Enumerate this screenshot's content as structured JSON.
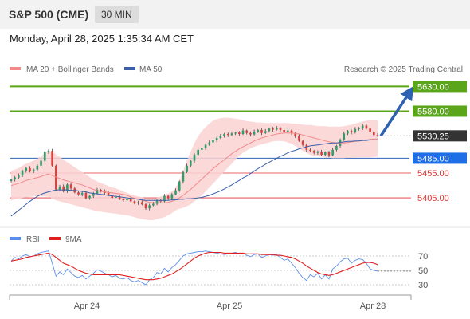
{
  "header": {
    "title": "S&P 500 (CME)",
    "timeframe": "30 MIN",
    "datetime": "Monday, April 28, 2025 1:35:34 AM CET",
    "source": "Research © 2025 Trading Central"
  },
  "colors": {
    "resistance": "#5aa51a",
    "support_line": "#2f63b8",
    "support_label": "#1e6fe6",
    "red_level": "#e03030",
    "price_box": "#333333",
    "bullish": "#2e9d6b",
    "bearish": "#d9403a",
    "ma20": "#f28a8a",
    "ma50": "#3a5fa8",
    "bollinger_fill": "#fbd2d2",
    "arrow": "#2e62b0",
    "rsi": "#5b8ee8",
    "rsi_ma": "#e02020"
  },
  "chart_data": [
    {
      "type": "line",
      "title": "",
      "legend": [
        {
          "label": "MA 20 + Bollinger Bands",
          "color": "#f28a8a"
        },
        {
          "label": "MA 50",
          "color": "#3a5fa8"
        }
      ],
      "legend_placement": "top-left",
      "x_ticks": [
        "Apr 24",
        "Apr 25",
        "Apr 28"
      ],
      "ylim": [
        5360,
        5650
      ],
      "levels": [
        {
          "value": 5630,
          "label": "5630.00",
          "kind": "resistance"
        },
        {
          "value": 5580,
          "label": "5580.00",
          "kind": "resistance"
        },
        {
          "value": 5530.25,
          "label": "5530.25",
          "kind": "last"
        },
        {
          "value": 5485,
          "label": "5485.00",
          "kind": "support"
        },
        {
          "value": 5455,
          "label": "5455.00",
          "kind": "red"
        },
        {
          "value": 5405,
          "label": "5405.00",
          "kind": "red"
        }
      ],
      "arrow": {
        "from": [
          98,
          5530
        ],
        "to": [
          106,
          5628
        ]
      },
      "close": [
        5442,
        5446,
        5450,
        5460,
        5465,
        5458,
        5462,
        5470,
        5480,
        5498,
        5500,
        5470,
        5422,
        5428,
        5418,
        5432,
        5424,
        5416,
        5412,
        5415,
        5404,
        5409,
        5414,
        5421,
        5419,
        5415,
        5410,
        5405,
        5407,
        5402,
        5400,
        5402,
        5398,
        5395,
        5396,
        5392,
        5384,
        5390,
        5393,
        5400,
        5398,
        5409,
        5404,
        5412,
        5420,
        5438,
        5457,
        5470,
        5480,
        5492,
        5502,
        5506,
        5512,
        5517,
        5521,
        5526,
        5530,
        5534,
        5532,
        5535,
        5537,
        5534,
        5541,
        5536,
        5533,
        5539,
        5542,
        5536,
        5540,
        5545,
        5543,
        5546,
        5542,
        5538,
        5541,
        5535,
        5530,
        5520,
        5512,
        5502,
        5500,
        5496,
        5498,
        5492,
        5497,
        5491,
        5502,
        5510,
        5522,
        5535,
        5540,
        5537,
        5544,
        5546,
        5551,
        5545,
        5538,
        5532,
        5530
      ],
      "ma20": [
        5430,
        5432,
        5434,
        5437,
        5440,
        5442,
        5444,
        5446,
        5448,
        5451,
        5453,
        5450,
        5447,
        5444,
        5441,
        5439,
        5437,
        5435,
        5433,
        5431,
        5428,
        5425,
        5422,
        5419,
        5418,
        5417,
        5416,
        5415,
        5414,
        5413,
        5412,
        5410,
        5407,
        5404,
        5402,
        5400,
        5398,
        5396,
        5395,
        5395,
        5395,
        5395,
        5396,
        5398,
        5401,
        5405,
        5410,
        5416,
        5422,
        5429,
        5436,
        5443,
        5450,
        5457,
        5464,
        5470,
        5476,
        5482,
        5488,
        5494,
        5499,
        5504,
        5508,
        5512,
        5516,
        5520,
        5523,
        5526,
        5528,
        5530,
        5532,
        5534,
        5535,
        5536,
        5536,
        5536,
        5535,
        5534,
        5532,
        5530,
        5528,
        5526,
        5524,
        5522,
        5520,
        5518,
        5517,
        5516,
        5516,
        5516,
        5517,
        5518,
        5519,
        5520,
        5521,
        5522,
        5523,
        5524,
        5524
      ],
      "bb_upper": [
        5460,
        5462,
        5465,
        5470,
        5474,
        5477,
        5480,
        5484,
        5489,
        5496,
        5500,
        5497,
        5493,
        5488,
        5482,
        5477,
        5472,
        5467,
        5462,
        5457,
        5452,
        5447,
        5442,
        5438,
        5435,
        5432,
        5429,
        5426,
        5424,
        5421,
        5418,
        5415,
        5412,
        5410,
        5408,
        5406,
        5404,
        5403,
        5403,
        5405,
        5408,
        5411,
        5414,
        5418,
        5425,
        5440,
        5460,
        5480,
        5498,
        5515,
        5530,
        5540,
        5548,
        5555,
        5561,
        5564,
        5566,
        5567,
        5567,
        5566,
        5565,
        5564,
        5562,
        5560,
        5559,
        5558,
        5557,
        5557,
        5556,
        5556,
        5556,
        5556,
        5556,
        5556,
        5556,
        5555,
        5555,
        5554,
        5553,
        5552,
        5552,
        5551,
        5550,
        5550,
        5550,
        5549,
        5549,
        5549,
        5549,
        5550,
        5551,
        5553,
        5555,
        5557,
        5559,
        5561,
        5562,
        5562,
        5562
      ],
      "bb_lower": [
        5400,
        5402,
        5404,
        5405,
        5406,
        5407,
        5408,
        5408,
        5408,
        5408,
        5407,
        5404,
        5400,
        5398,
        5396,
        5394,
        5392,
        5390,
        5388,
        5386,
        5384,
        5382,
        5380,
        5378,
        5377,
        5376,
        5375,
        5374,
        5373,
        5372,
        5371,
        5370,
        5368,
        5366,
        5364,
        5362,
        5361,
        5360,
        5360,
        5362,
        5364,
        5366,
        5370,
        5374,
        5380,
        5383,
        5385,
        5388,
        5392,
        5398,
        5404,
        5410,
        5418,
        5426,
        5434,
        5442,
        5450,
        5458,
        5466,
        5474,
        5482,
        5490,
        5496,
        5501,
        5505,
        5508,
        5511,
        5513,
        5515,
        5517,
        5519,
        5520,
        5520,
        5519,
        5517,
        5514,
        5510,
        5505,
        5500,
        5496,
        5492,
        5490,
        5489,
        5488,
        5487,
        5486,
        5485,
        5485,
        5485,
        5485,
        5486,
        5486,
        5486,
        5487,
        5487,
        5487,
        5487,
        5488,
        5488
      ],
      "ma50": [
        5368,
        5374,
        5380,
        5386,
        5392,
        5398,
        5403,
        5408,
        5412,
        5415,
        5417,
        5419,
        5421,
        5421,
        5421,
        5421,
        5420,
        5420,
        5419,
        5418,
        5417,
        5415,
        5414,
        5413,
        5412,
        5411,
        5410,
        5409,
        5408,
        5407,
        5406,
        5405,
        5404,
        5403,
        5402,
        5401,
        5400,
        5400,
        5400,
        5400,
        5400,
        5400,
        5400,
        5401,
        5401,
        5402,
        5402,
        5403,
        5403,
        5404,
        5405,
        5406,
        5408,
        5410,
        5413,
        5416,
        5419,
        5423,
        5427,
        5431,
        5436,
        5440,
        5445,
        5449,
        5454,
        5459,
        5464,
        5468,
        5473,
        5477,
        5481,
        5485,
        5489,
        5492,
        5496,
        5499,
        5501,
        5504,
        5506,
        5508,
        5510,
        5511,
        5512,
        5513,
        5514,
        5515,
        5516,
        5516,
        5517,
        5518,
        5519,
        5519,
        5520,
        5520,
        5521,
        5521,
        5522,
        5522,
        5522
      ]
    },
    {
      "type": "line",
      "title": "",
      "legend": [
        {
          "label": "RSI",
          "color": "#5b8ee8"
        },
        {
          "label": "9MA",
          "color": "#e02020"
        }
      ],
      "legend_placement": "top-left",
      "ylim": [
        20,
        80
      ],
      "y_ticks": [
        "70",
        "50",
        "30"
      ],
      "rsi": [
        63,
        68,
        66,
        70,
        72,
        69,
        70,
        73,
        75,
        76,
        77,
        60,
        42,
        48,
        44,
        52,
        47,
        42,
        40,
        43,
        38,
        42,
        46,
        51,
        49,
        46,
        44,
        41,
        43,
        39,
        38,
        40,
        36,
        34,
        36,
        33,
        30,
        37,
        40,
        47,
        45,
        53,
        48,
        54,
        58,
        64,
        70,
        73,
        74,
        75,
        76,
        76,
        77,
        76,
        75,
        74,
        73,
        72,
        73,
        74,
        75,
        73,
        74,
        71,
        69,
        72,
        73,
        68,
        70,
        72,
        71,
        72,
        68,
        64,
        66,
        60,
        54,
        46,
        40,
        36,
        44,
        41,
        46,
        38,
        44,
        38,
        52,
        56,
        62,
        66,
        67,
        60,
        64,
        66,
        65,
        60,
        52,
        50,
        49
      ],
      "rsi_ma": [
        63,
        64,
        65,
        66,
        68,
        69,
        70,
        71,
        72,
        73,
        74,
        72,
        68,
        64,
        60,
        58,
        56,
        53,
        50,
        48,
        46,
        45,
        44,
        44,
        44,
        44,
        44,
        44,
        44,
        44,
        43,
        42,
        41,
        40,
        39,
        38,
        37,
        37,
        37,
        38,
        39,
        41,
        43,
        45,
        48,
        51,
        55,
        59,
        63,
        67,
        70,
        72,
        74,
        75,
        75,
        75,
        75,
        74,
        74,
        74,
        74,
        74,
        74,
        73,
        73,
        73,
        73,
        72,
        72,
        72,
        72,
        71,
        71,
        70,
        69,
        68,
        66,
        63,
        60,
        56,
        53,
        50,
        47,
        45,
        44,
        43,
        44,
        46,
        48,
        50,
        52,
        54,
        56,
        58,
        60,
        61,
        61,
        60,
        58
      ]
    }
  ]
}
